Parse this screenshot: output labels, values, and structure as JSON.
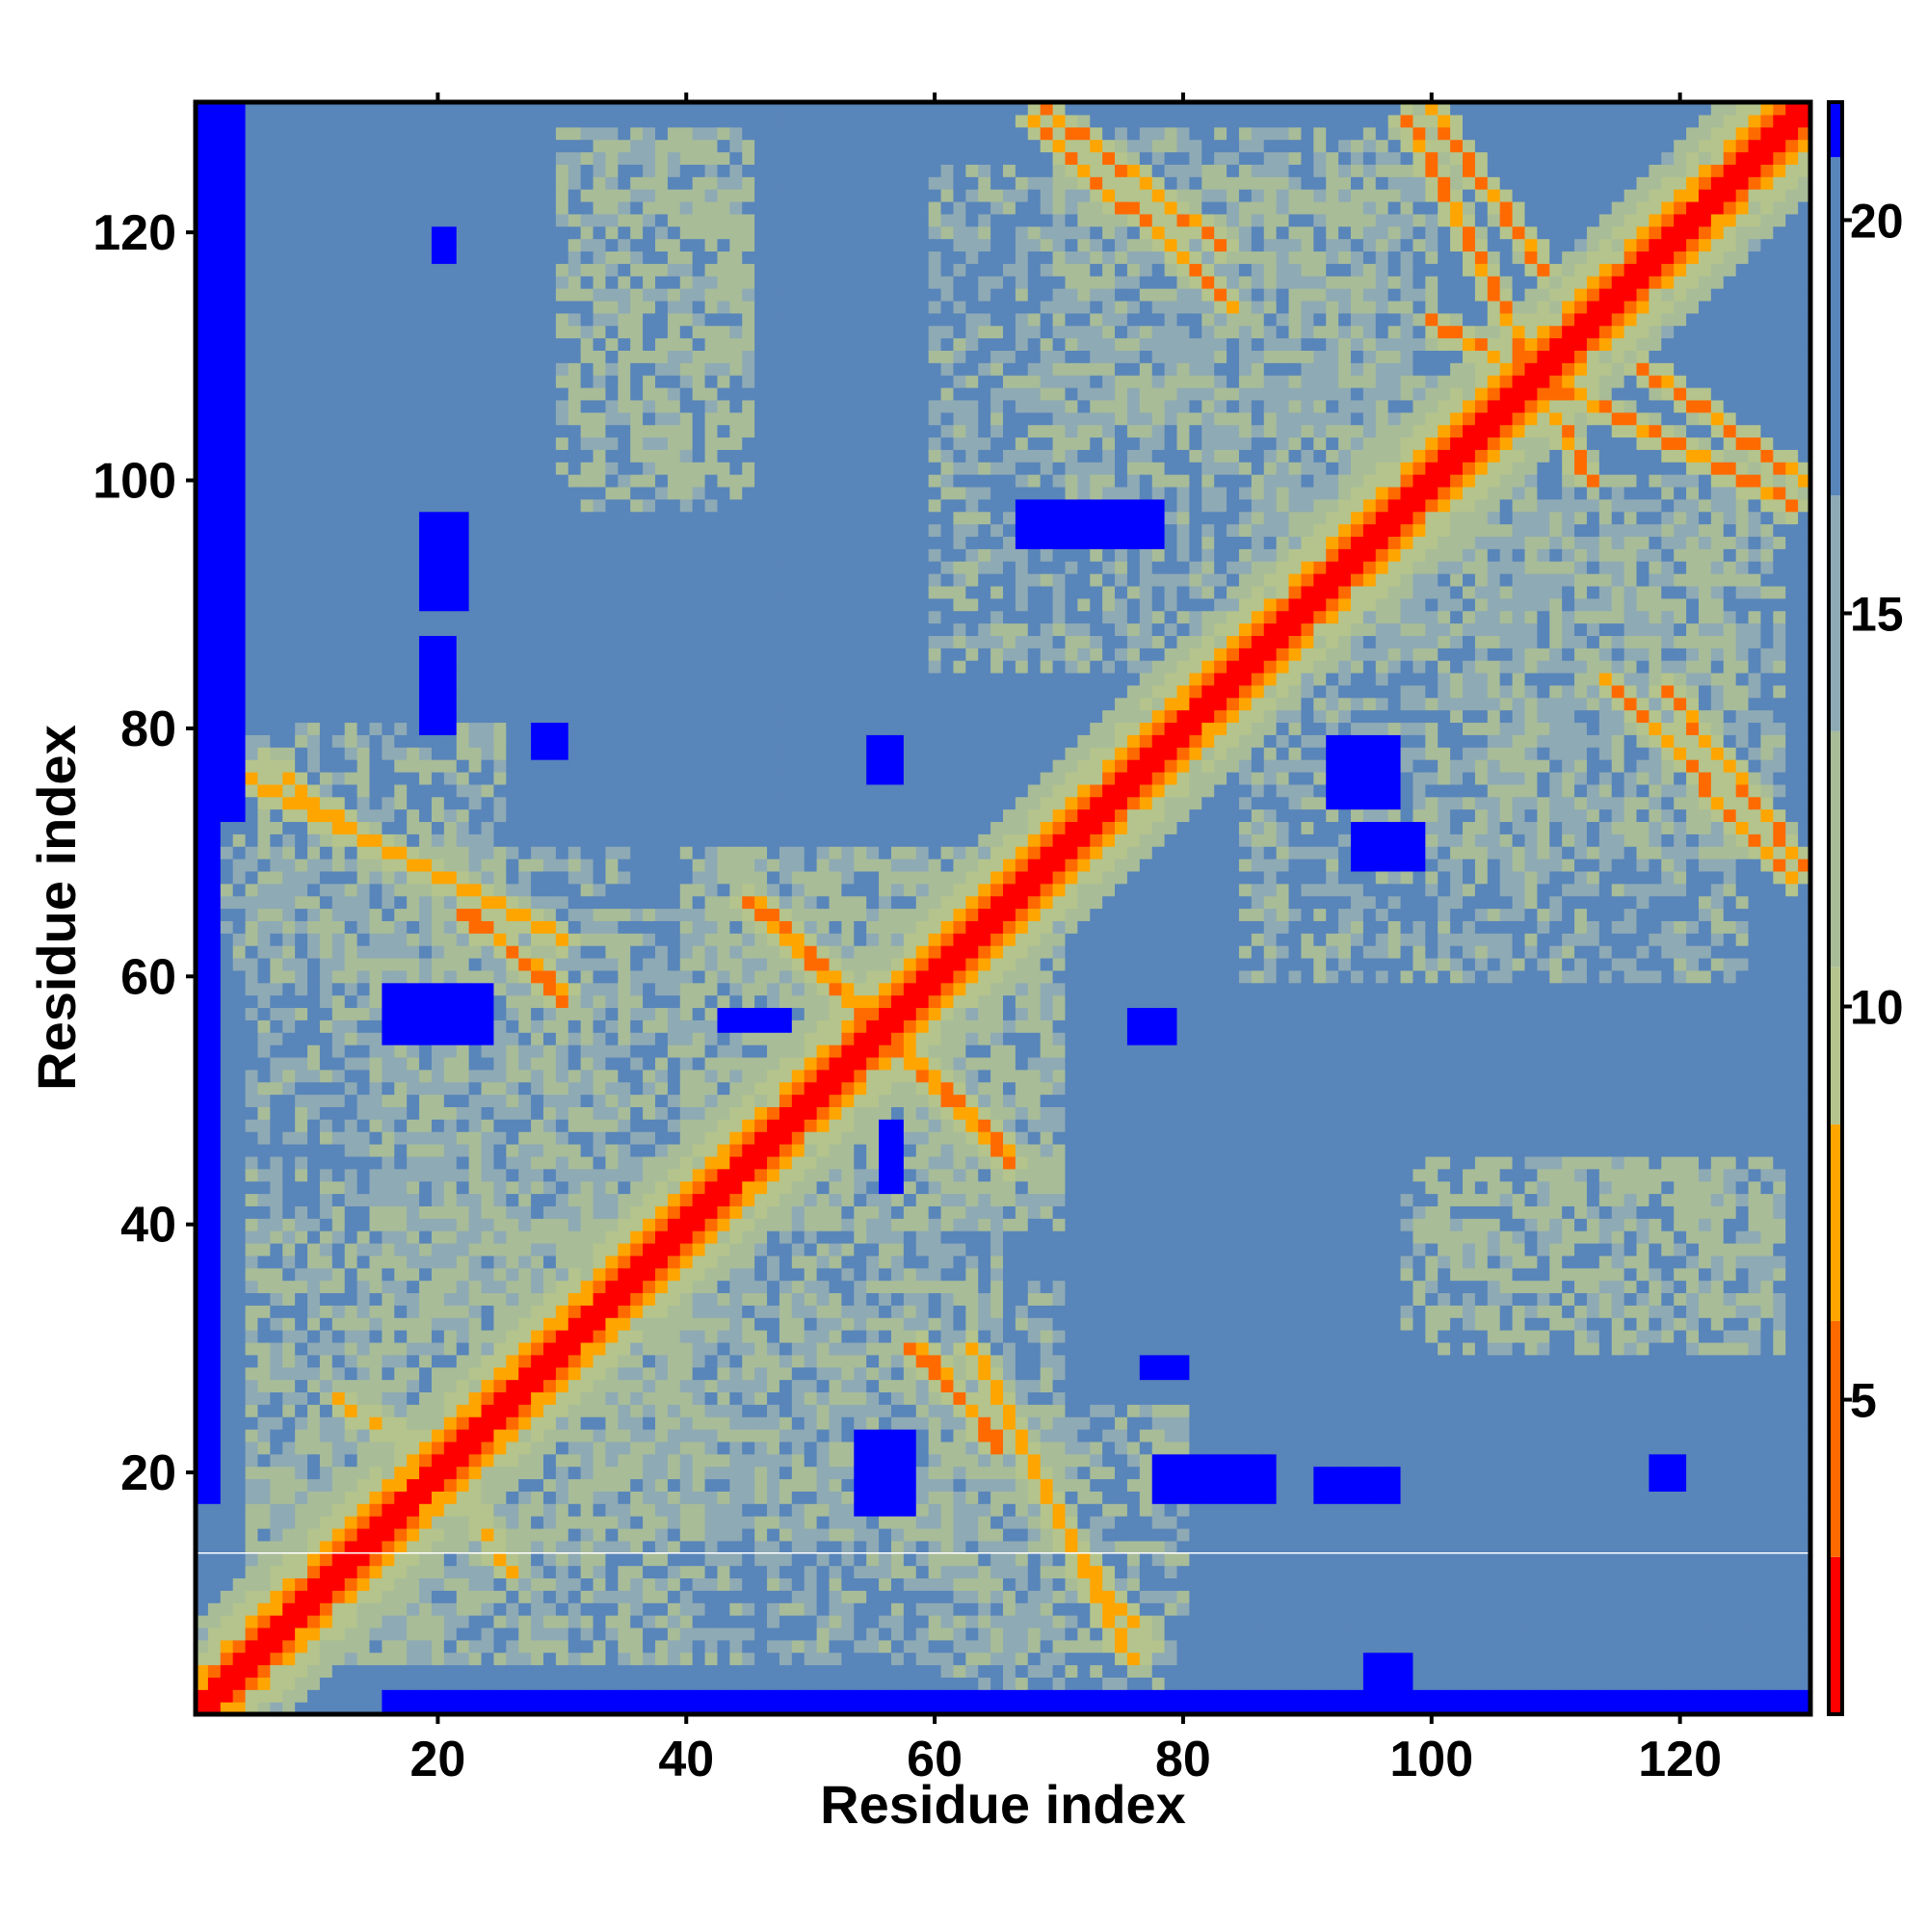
{
  "chart_data": {
    "type": "heatmap",
    "title": "",
    "xlabel": "Residue index",
    "ylabel": "Residue index",
    "xlim": [
      1,
      130
    ],
    "ylim": [
      1,
      130
    ],
    "x_ticks": [
      20,
      40,
      60,
      80,
      100,
      120
    ],
    "y_ticks": [
      20,
      40,
      60,
      80,
      100,
      120
    ],
    "colorbar": {
      "ticks": [
        5,
        10,
        15,
        20
      ],
      "range": [
        1,
        21.5
      ],
      "colors": [
        {
          "max": 3.0,
          "color": "#ff0000"
        },
        {
          "max": 6.0,
          "color": "#ff6a00"
        },
        {
          "max": 8.5,
          "color": "#ffa500"
        },
        {
          "max": 10.5,
          "color": "#b4c48c"
        },
        {
          "max": 13.5,
          "color": "#a8bc98"
        },
        {
          "max": 16.5,
          "color": "#8eaab4"
        },
        {
          "max": 20.8,
          "color": "#5885ba"
        },
        {
          "max": 99,
          "color": "#0000ff"
        }
      ]
    },
    "matrix_description_symmetric": true,
    "diagonal_value": 1.5,
    "background_value": 19.0,
    "contact_bands": [
      {
        "from": [
          5,
          76
        ],
        "to": [
          30,
          63
        ],
        "value": 6.5
      },
      {
        "from": [
          22,
          65
        ],
        "to": [
          30,
          59
        ],
        "value": 5.5
      },
      {
        "from": [
          46,
          66
        ],
        "to": [
          66,
          45
        ],
        "value": 5.5
      },
      {
        "from": [
          58,
          30
        ],
        "to": [
          65,
          23
        ],
        "value": 5.5
      },
      {
        "from": [
          69,
          130
        ],
        "to": [
          83,
          119
        ],
        "value": 5.5
      },
      {
        "from": [
          100,
          130
        ],
        "to": [
          109,
          117
        ],
        "value": 5.5
      },
      {
        "from": [
          108,
          109
        ],
        "to": [
          129,
          98
        ],
        "value": 5.5
      },
      {
        "from": [
          114,
          84
        ],
        "to": [
          129,
          68
        ],
        "value": 5.5
      },
      {
        "from": [
          100,
          113
        ],
        "to": [
          110,
          107
        ],
        "value": 6.0
      },
      {
        "from": [
          71,
          14
        ],
        "to": [
          77,
          6
        ],
        "value": 7.0
      },
      {
        "from": [
          12,
          26
        ],
        "to": [
          22,
          20
        ],
        "value": 7.0
      }
    ],
    "patches": [
      {
        "x": [
          32,
          45
        ],
        "y": [
          98,
          128
        ],
        "value": 11.5
      },
      {
        "x": [
          100,
          128
        ],
        "y": [
          30,
          45
        ],
        "value": 11.5
      },
      {
        "x": [
          5,
          30
        ],
        "y": [
          5,
          40
        ],
        "value": 12.0
      },
      {
        "x": [
          30,
          70
        ],
        "y": [
          5,
          35
        ],
        "value": 12.5
      },
      {
        "x": [
          70,
          100
        ],
        "y": [
          100,
          128
        ],
        "value": 12.0
      },
      {
        "x": [
          85,
          125
        ],
        "y": [
          60,
          100
        ],
        "value": 12.5
      },
      {
        "x": [
          40,
          70
        ],
        "y": [
          40,
          70
        ],
        "value": 11.5
      },
      {
        "x": [
          15,
          40
        ],
        "y": [
          35,
          65
        ],
        "value": 12.5
      },
      {
        "x": [
          2,
          25
        ],
        "y": [
          60,
          80
        ],
        "value": 12.0
      }
    ],
    "far_regions": [
      {
        "x": [
          1,
          4
        ],
        "y": [
          73,
          130
        ]
      },
      {
        "x": [
          1,
          2
        ],
        "y": [
          18,
          73
        ]
      },
      {
        "x": [
          16,
          130
        ],
        "y": [
          1,
          2
        ]
      },
      {
        "x": [
          95,
          98
        ],
        "y": [
          1,
          5
        ]
      },
      {
        "x": [
          19,
          21
        ],
        "y": [
          80,
          87
        ]
      },
      {
        "x": [
          19,
          22
        ],
        "y": [
          90,
          97
        ]
      },
      {
        "x": [
          16,
          24
        ],
        "y": [
          55,
          59
        ]
      },
      {
        "x": [
          54,
          58
        ],
        "y": [
          17,
          23
        ]
      },
      {
        "x": [
          78,
          87
        ],
        "y": [
          18,
          21
        ]
      },
      {
        "x": [
          67,
          78
        ],
        "y": [
          95,
          98
        ]
      },
      {
        "x": [
          92,
          97
        ],
        "y": [
          74,
          79
        ]
      },
      {
        "x": [
          94,
          99
        ],
        "y": [
          69,
          72
        ]
      },
      {
        "x": [
          43,
          48
        ],
        "y": [
          56,
          57
        ]
      },
      {
        "x": [
          76,
          79
        ],
        "y": [
          55,
          57
        ]
      },
      {
        "x": [
          28,
          30
        ],
        "y": [
          78,
          80
        ]
      },
      {
        "x": [
          56,
          57
        ],
        "y": [
          43,
          48
        ]
      },
      {
        "x": [
          55,
          57
        ],
        "y": [
          76,
          79
        ]
      },
      {
        "x": [
          77,
          80
        ],
        "y": [
          28,
          29
        ]
      },
      {
        "x": [
          91,
          97
        ],
        "y": [
          18,
          20
        ]
      },
      {
        "x": [
          118,
          120
        ],
        "y": [
          19,
          21
        ]
      },
      {
        "x": [
          20,
          21
        ],
        "y": [
          118,
          120
        ]
      }
    ],
    "thin_line_y": 13.5
  }
}
